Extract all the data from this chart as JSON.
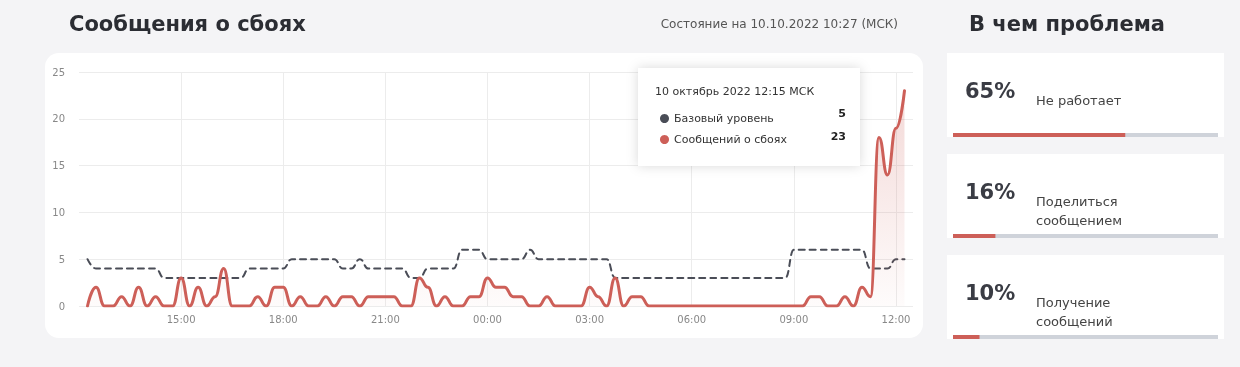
{
  "chart_data": [
    {
      "type": "line",
      "title": "Сообщения о сбоях",
      "subtitle": "Состояние на 10.10.2022 10:27 (МСК)",
      "legend_title": "10 октябрь 2022 12:15 МСК",
      "annotations": [
        "5",
        "23"
      ],
      "x": [
        "2022-10-09T12:15",
        "2022-10-09T12:30",
        "2022-10-09T12:45",
        "2022-10-09T13:00",
        "2022-10-09T13:15",
        "2022-10-09T13:30",
        "2022-10-09T13:45",
        "2022-10-09T14:00",
        "2022-10-09T14:15",
        "2022-10-09T14:30",
        "2022-10-09T14:45",
        "2022-10-09T15:00",
        "2022-10-09T15:15",
        "2022-10-09T15:30",
        "2022-10-09T15:45",
        "2022-10-09T16:00",
        "2022-10-09T16:15",
        "2022-10-09T16:30",
        "2022-10-09T16:45",
        "2022-10-09T17:00",
        "2022-10-09T17:15",
        "2022-10-09T17:30",
        "2022-10-09T17:45",
        "2022-10-09T18:00",
        "2022-10-09T18:15",
        "2022-10-09T18:30",
        "2022-10-09T18:45",
        "2022-10-09T19:00",
        "2022-10-09T19:15",
        "2022-10-09T19:30",
        "2022-10-09T19:45",
        "2022-10-09T20:00",
        "2022-10-09T20:15",
        "2022-10-09T20:30",
        "2022-10-09T20:45",
        "2022-10-09T21:00",
        "2022-10-09T21:15",
        "2022-10-09T21:30",
        "2022-10-09T21:45",
        "2022-10-09T22:00",
        "2022-10-09T22:15",
        "2022-10-09T22:30",
        "2022-10-09T22:45",
        "2022-10-09T23:00",
        "2022-10-09T23:15",
        "2022-10-09T23:30",
        "2022-10-09T23:45",
        "2022-10-10T00:00",
        "2022-10-10T00:15",
        "2022-10-10T00:30",
        "2022-10-10T00:45",
        "2022-10-10T01:00",
        "2022-10-10T01:15",
        "2022-10-10T01:30",
        "2022-10-10T01:45",
        "2022-10-10T02:00",
        "2022-10-10T02:15",
        "2022-10-10T02:30",
        "2022-10-10T02:45",
        "2022-10-10T03:00",
        "2022-10-10T03:15",
        "2022-10-10T03:30",
        "2022-10-10T03:45",
        "2022-10-10T04:00",
        "2022-10-10T04:15",
        "2022-10-10T04:30",
        "2022-10-10T04:45",
        "2022-10-10T05:00",
        "2022-10-10T05:15",
        "2022-10-10T05:30",
        "2022-10-10T05:45",
        "2022-10-10T06:00",
        "2022-10-10T06:15",
        "2022-10-10T06:30",
        "2022-10-10T06:45",
        "2022-10-10T07:00",
        "2022-10-10T07:15",
        "2022-10-10T07:30",
        "2022-10-10T07:45",
        "2022-10-10T08:00",
        "2022-10-10T08:15",
        "2022-10-10T08:30",
        "2022-10-10T08:45",
        "2022-10-10T09:00",
        "2022-10-10T09:15",
        "2022-10-10T09:30",
        "2022-10-10T09:45",
        "2022-10-10T10:00",
        "2022-10-10T10:15",
        "2022-10-10T10:30",
        "2022-10-10T10:45",
        "2022-10-10T11:00",
        "2022-10-10T11:15",
        "2022-10-10T11:30",
        "2022-10-10T11:45",
        "2022-10-10T12:00",
        "2022-10-10T12:15"
      ],
      "series": [
        {
          "name": "Базовый уровень",
          "color": "#4a4d57",
          "line_style": "dashed",
          "values": [
            5,
            4,
            4,
            4,
            4,
            4,
            4,
            4,
            4,
            3,
            3,
            3,
            3,
            3,
            3,
            3,
            3,
            3,
            3,
            4,
            4,
            4,
            4,
            4,
            5,
            5,
            5,
            5,
            5,
            5,
            4,
            4,
            5,
            4,
            4,
            4,
            4,
            4,
            3,
            3,
            4,
            4,
            4,
            4,
            6,
            6,
            6,
            5,
            5,
            5,
            5,
            5,
            6,
            5,
            5,
            5,
            5,
            5,
            5,
            5,
            5,
            5,
            3,
            3,
            3,
            3,
            3,
            3,
            3,
            3,
            3,
            3,
            3,
            3,
            3,
            3,
            3,
            3,
            3,
            3,
            3,
            3,
            3,
            6,
            6,
            6,
            6,
            6,
            6,
            6,
            6,
            6,
            4,
            4,
            4,
            5,
            5
          ]
        },
        {
          "name": "Сообщений о сбоях",
          "type": "area",
          "color": "#cd5f58",
          "line_style": "solid",
          "values": [
            0,
            2,
            0,
            0,
            1,
            0,
            2,
            0,
            1,
            0,
            0,
            3,
            0,
            2,
            0,
            1,
            4,
            0,
            0,
            0,
            1,
            0,
            2,
            2,
            0,
            1,
            0,
            0,
            1,
            0,
            1,
            1,
            0,
            1,
            1,
            1,
            1,
            0,
            0,
            3,
            2,
            0,
            1,
            0,
            0,
            1,
            1,
            3,
            2,
            2,
            1,
            1,
            0,
            0,
            1,
            0,
            0,
            0,
            0,
            2,
            1,
            0,
            3,
            0,
            1,
            1,
            0,
            0,
            0,
            0,
            0,
            0,
            0,
            0,
            0,
            0,
            0,
            0,
            0,
            0,
            0,
            0,
            0,
            0,
            0,
            1,
            1,
            0,
            0,
            1,
            0,
            2,
            1,
            18,
            14,
            19,
            23
          ]
        }
      ],
      "xlim": [
        "2022-10-09T12:00",
        "2022-10-10T12:30"
      ],
      "xticks": [
        {
          "value": "2022-10-09T15:00",
          "label": "15:00"
        },
        {
          "value": "2022-10-09T18:00",
          "label": "18:00"
        },
        {
          "value": "2022-10-09T21:00",
          "label": "21:00"
        },
        {
          "value": "2022-10-10T00:00",
          "label": "00:00"
        },
        {
          "value": "2022-10-10T03:00",
          "label": "03:00"
        },
        {
          "value": "2022-10-10T06:00",
          "label": "06:00"
        },
        {
          "value": "2022-10-10T09:00",
          "label": "09:00"
        },
        {
          "value": "2022-10-10T12:00",
          "label": "12:00"
        }
      ],
      "ylim": [
        0,
        25
      ],
      "yticks": [
        0,
        5,
        10,
        15,
        20,
        25
      ],
      "grid": true,
      "legend": "top right"
    },
    {
      "type": "bar",
      "orientation": "horizontal",
      "title": "В чем проблема",
      "categories": [
        "Не работает",
        "Поделиться сообщением",
        "Получение сообщений"
      ],
      "values": [
        65,
        16,
        10
      ],
      "value_labels": [
        "65%",
        "16%",
        "10%"
      ],
      "color": "#cd5f58",
      "xlim": [
        0,
        100
      ],
      "tick_labels": "y"
    }
  ]
}
